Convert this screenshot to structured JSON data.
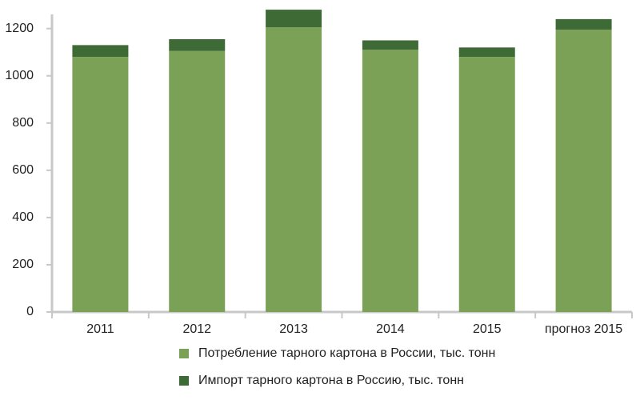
{
  "chart_data": {
    "type": "stacked-bar",
    "categories": [
      "2011",
      "2012",
      "2013",
      "2014",
      "2015",
      "прогноз 2015"
    ],
    "series": [
      {
        "name": "Потребление тарного картона в России, тыс. тонн",
        "color": "#7aa156",
        "values": [
          1080,
          1105,
          1205,
          1110,
          1080,
          1195
        ]
      },
      {
        "name": "Импорт тарного картона в Россию, тыс. тонн",
        "color": "#3e6a36",
        "values": [
          50,
          50,
          75,
          40,
          40,
          45
        ]
      }
    ],
    "ylim": [
      0,
      1260
    ],
    "yticks": [
      0,
      200,
      400,
      600,
      800,
      1000,
      1200
    ],
    "grid": false
  }
}
